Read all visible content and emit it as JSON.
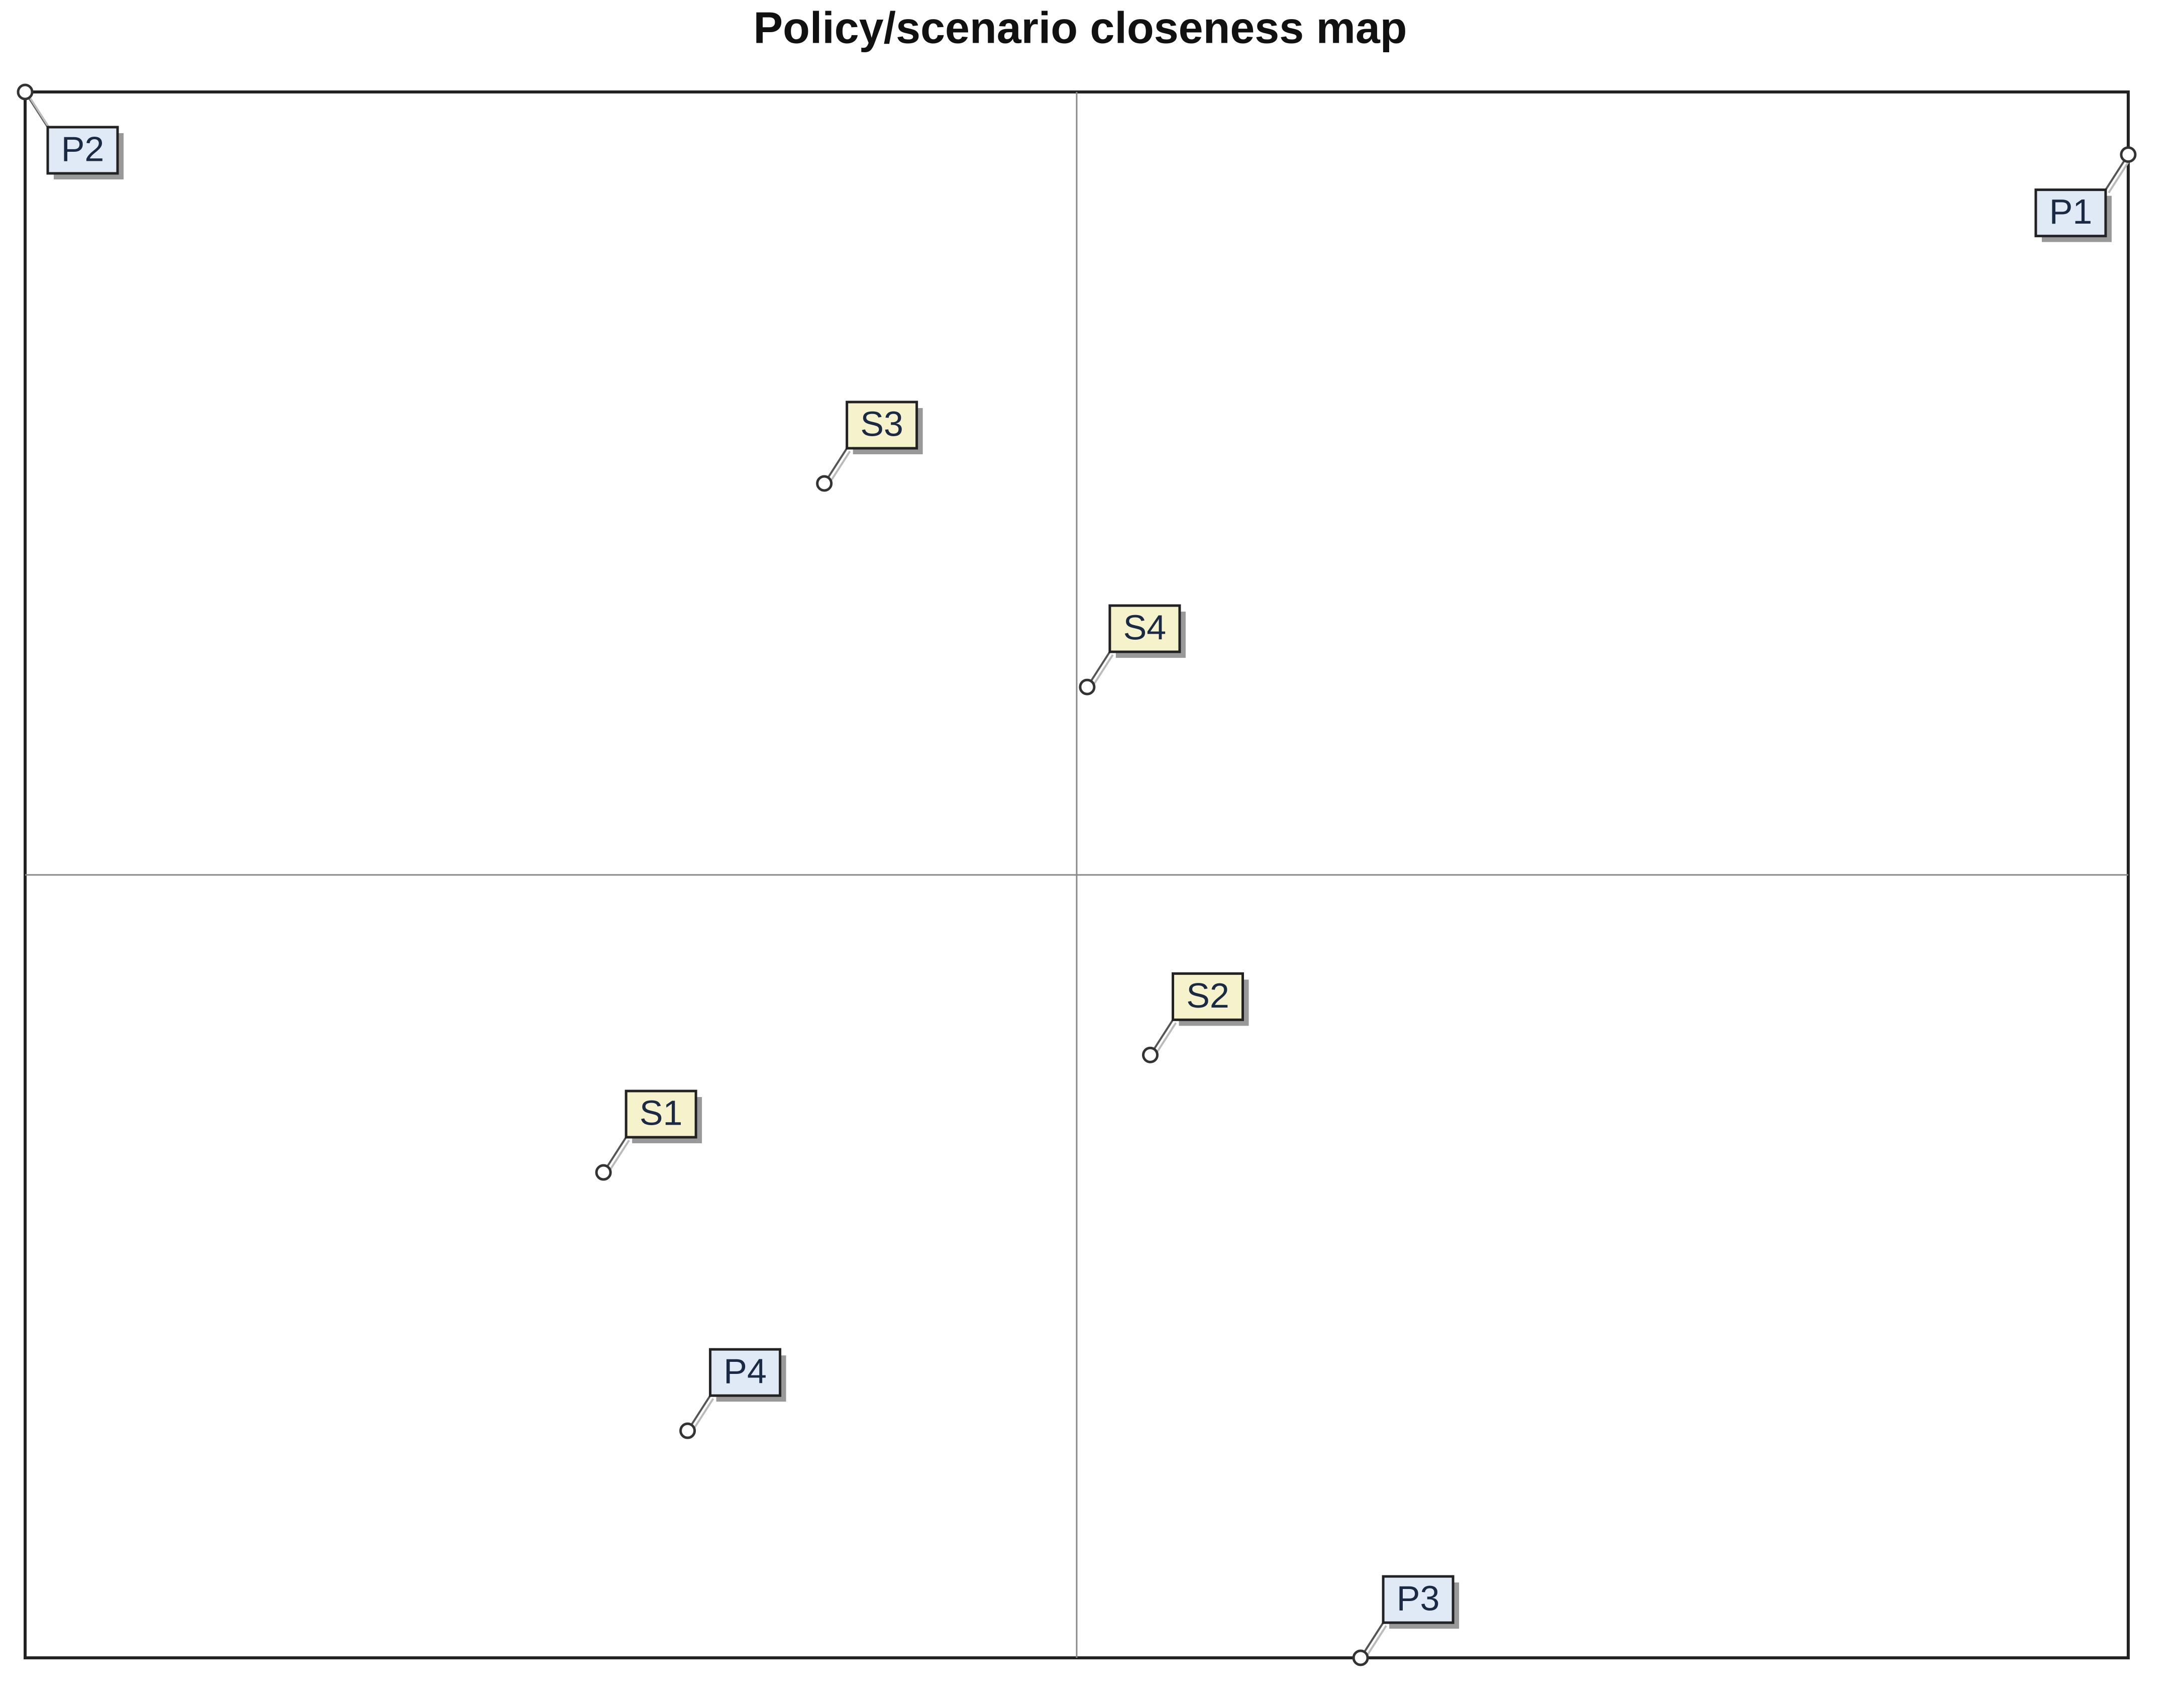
{
  "chart_data": {
    "type": "scatter",
    "title": "Policy/scenario closeness map",
    "xlim": [
      -1,
      1
    ],
    "ylim": [
      -1,
      1
    ],
    "axis_cross": true,
    "series": [
      {
        "color": "#dfeaf6",
        "labels": [
          "P1",
          "P2",
          "P3",
          "P4"
        ],
        "x": [
          1,
          -1,
          0.27,
          -0.37
        ],
        "values": [
          0.92,
          1,
          -1,
          -0.71
        ]
      },
      {
        "color": "#f6f2cc",
        "labels": [
          "S1",
          "S2",
          "S3",
          "S4"
        ],
        "x": [
          -0.45,
          0.07,
          -0.24,
          0.01
        ],
        "values": [
          -0.38,
          -0.23,
          0.5,
          0.24
        ]
      }
    ]
  }
}
